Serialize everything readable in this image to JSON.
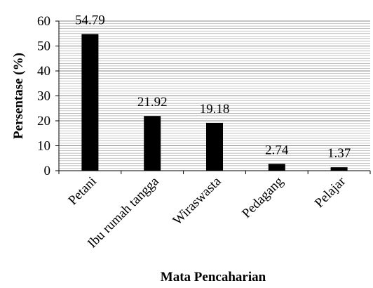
{
  "chart_data": {
    "type": "bar",
    "title": "",
    "xlabel": "Mata Pencaharian",
    "ylabel": "Persentase (%)",
    "categories": [
      "Petani",
      "Ibu rumah tangga",
      "Wiraswasta",
      "Pedagang",
      "Pelajar"
    ],
    "values": [
      54.79,
      21.92,
      19.18,
      2.74,
      1.37
    ],
    "data_labels": [
      "54.79",
      "21.92",
      "19.18",
      "2.74",
      "1.37"
    ],
    "ylim": [
      0,
      60
    ],
    "yticks": [
      0,
      10,
      20,
      30,
      40,
      50,
      60
    ],
    "grid": true,
    "legend": "none",
    "colors": {
      "bar": "#000000",
      "grid": "#aaaaaa",
      "axis": "#000000"
    }
  }
}
